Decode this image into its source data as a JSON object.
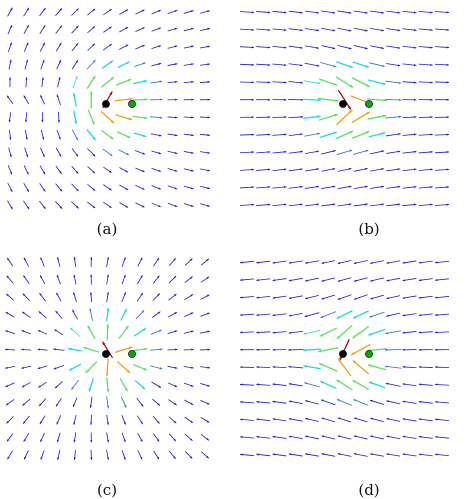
{
  "panels": [
    {
      "id": "a",
      "caption": "(a)",
      "pattern": "pinned-repel",
      "dots": [
        {
          "color": "#000000"
        },
        {
          "color": "#10a010"
        }
      ]
    },
    {
      "id": "b",
      "caption": "(b)",
      "pattern": "rightward-flow",
      "dots": [
        {
          "color": "#000000"
        },
        {
          "color": "#10a010"
        }
      ]
    },
    {
      "id": "c",
      "caption": "(c)",
      "pattern": "radial-outward",
      "dots": [
        {
          "color": "#000000"
        },
        {
          "color": "#10a010"
        }
      ]
    },
    {
      "id": "d",
      "caption": "(d)",
      "pattern": "leftward-flow",
      "dots": [
        {
          "color": "#000000"
        },
        {
          "color": "#10a010"
        }
      ]
    }
  ],
  "arrow_colors": {
    "far": "#1a1acc",
    "mid": "#2a6ae0",
    "near": "#20d8e8",
    "close": "#60e060",
    "hot": "#f0a010",
    "hottest": "#a01010"
  }
}
